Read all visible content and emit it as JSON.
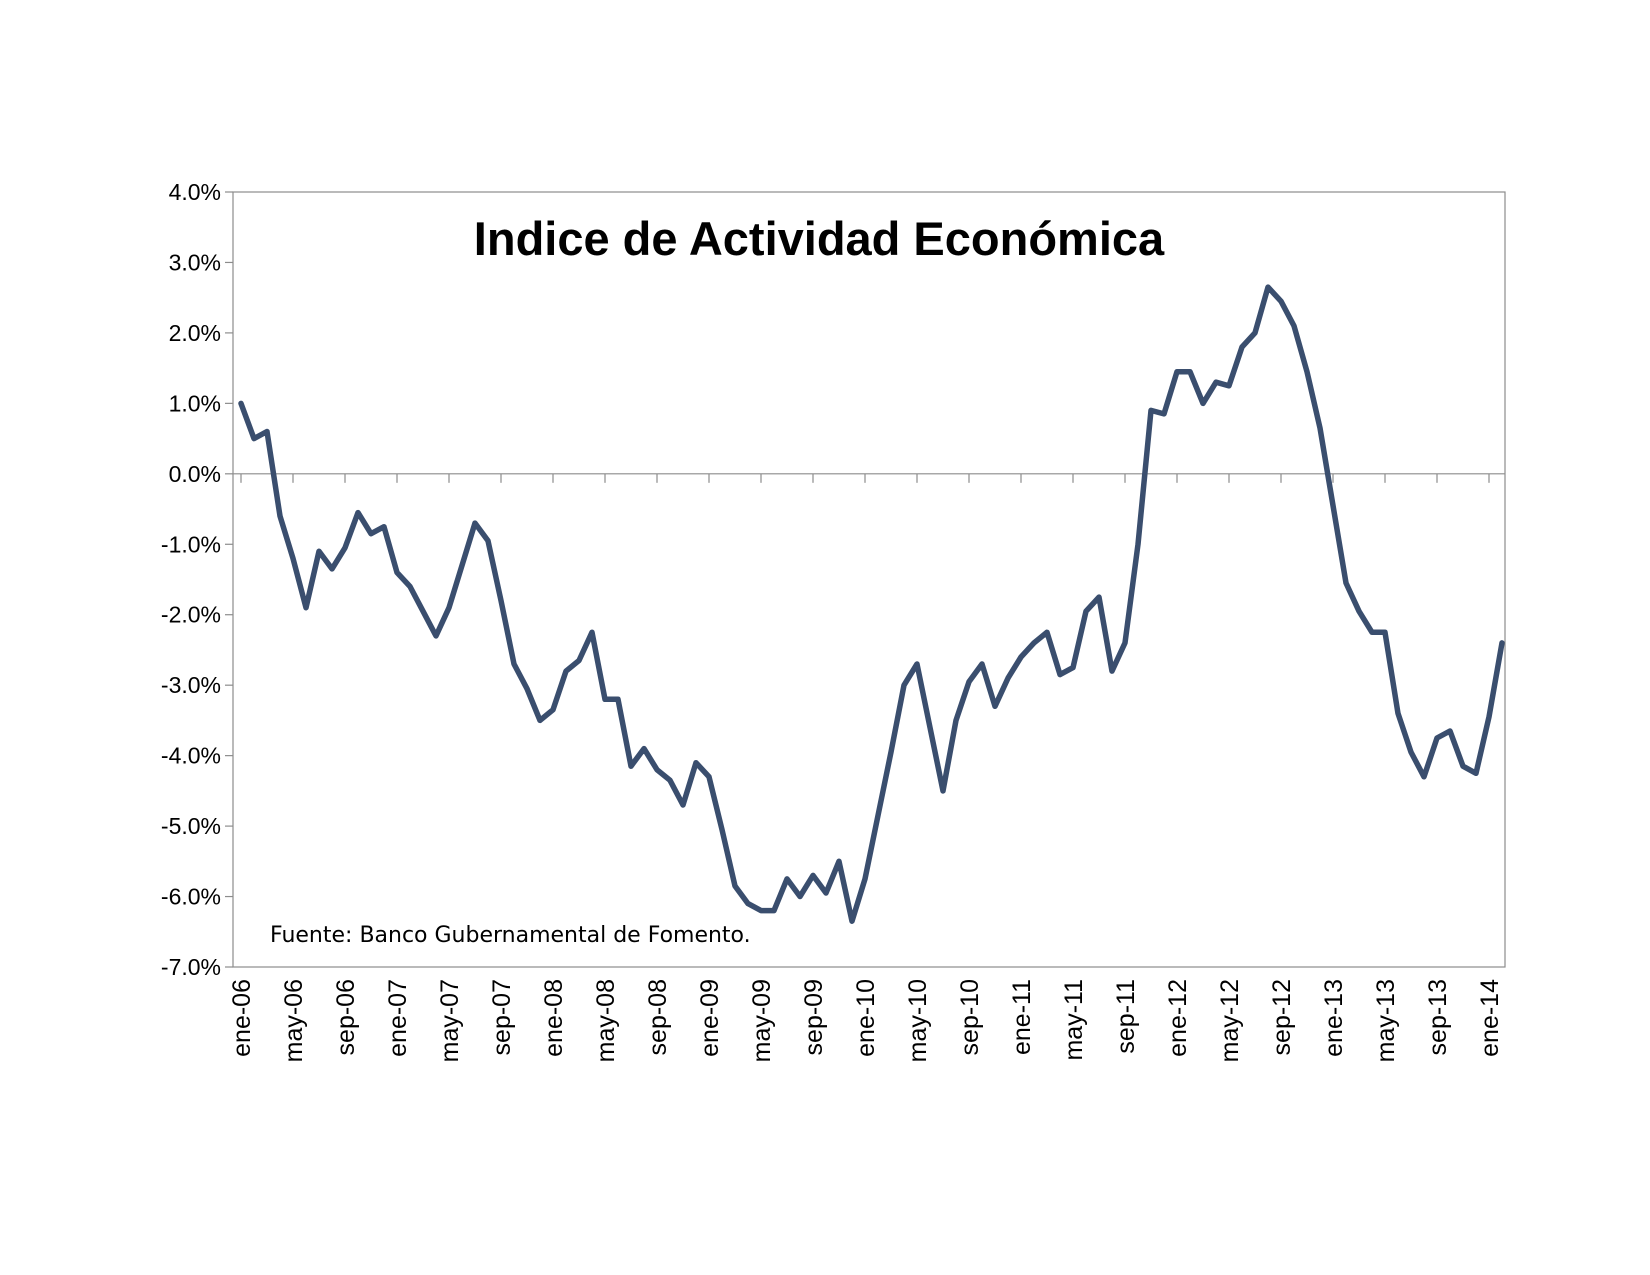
{
  "chart_data": {
    "type": "line",
    "title": "Indice de Actividad Económica",
    "annotation": "Fuente: Banco Gubernamental de Fomento.",
    "xlabel": "",
    "ylabel": "",
    "ylim": [
      -7.0,
      4.0
    ],
    "y_ticks": [
      4.0,
      3.0,
      2.0,
      1.0,
      0.0,
      -1.0,
      -2.0,
      -3.0,
      -4.0,
      -5.0,
      -6.0,
      -7.0
    ],
    "y_tick_labels": [
      "4.0%",
      "3.0%",
      "2.0%",
      "1.0%",
      "0.0%",
      "-1.0%",
      "-2.0%",
      "-3.0%",
      "-4.0%",
      "-5.0%",
      "-6.0%",
      "-7.0%"
    ],
    "x_tick_labels": [
      "ene-06",
      "may-06",
      "sep-06",
      "ene-07",
      "may-07",
      "sep-07",
      "ene-08",
      "may-08",
      "sep-08",
      "ene-09",
      "may-09",
      "sep-09",
      "ene-10",
      "may-10",
      "sep-10",
      "ene-11",
      "may-11",
      "sep-11",
      "ene-12",
      "may-12",
      "sep-12",
      "ene-13",
      "may-13",
      "sep-13",
      "ene-14"
    ],
    "grid": false,
    "line_color": "#3a4e6e",
    "series": [
      {
        "name": "",
        "values": [
          1.0,
          0.5,
          0.6,
          -0.6,
          -1.2,
          -1.9,
          -1.1,
          -1.35,
          -1.05,
          -0.55,
          -0.85,
          -0.75,
          -1.4,
          -1.6,
          -1.95,
          -2.3,
          -1.9,
          -1.3,
          -0.7,
          -0.95,
          -1.8,
          -2.7,
          -3.05,
          -3.5,
          -3.35,
          -2.8,
          -2.65,
          -2.25,
          -3.2,
          -3.2,
          -4.15,
          -3.9,
          -4.2,
          -4.35,
          -4.7,
          -4.1,
          -4.3,
          -5.05,
          -5.85,
          -6.1,
          -6.2,
          -6.2,
          -5.75,
          -6.0,
          -5.7,
          -5.95,
          -5.5,
          -6.35,
          -5.75,
          -4.85,
          -3.95,
          -3.0,
          -2.7,
          -3.6,
          -4.5,
          -3.5,
          -2.95,
          -2.7,
          -3.3,
          -2.9,
          -2.6,
          -2.4,
          -2.25,
          -2.85,
          -2.75,
          -1.95,
          -1.75,
          -2.8,
          -2.4,
          -1.0,
          0.9,
          0.85,
          1.45,
          1.45,
          1.0,
          1.3,
          1.25,
          1.8,
          2.0,
          2.65,
          2.45,
          2.1,
          1.45,
          0.65,
          -0.45,
          -1.55,
          -1.95,
          -2.25,
          -2.25,
          -3.4,
          -3.95,
          -4.3,
          -3.75,
          -3.65,
          -4.15,
          -4.25,
          -3.45,
          -2.4
        ]
      }
    ]
  }
}
